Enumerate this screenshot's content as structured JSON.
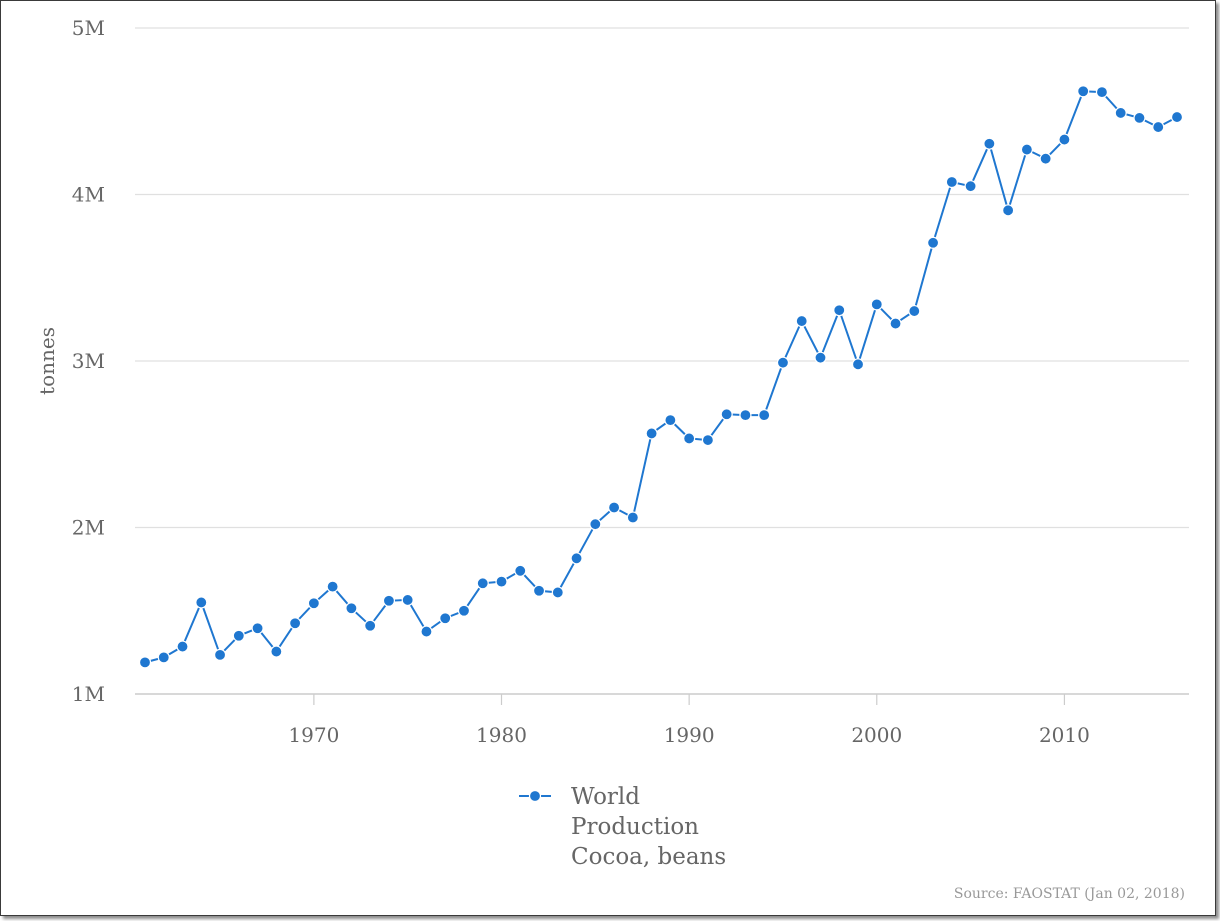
{
  "chart_data": {
    "type": "line",
    "title": "",
    "xlabel": "",
    "ylabel": "tonnes",
    "x": [
      1961,
      1962,
      1963,
      1964,
      1965,
      1966,
      1967,
      1968,
      1969,
      1970,
      1971,
      1972,
      1973,
      1974,
      1975,
      1976,
      1977,
      1978,
      1979,
      1980,
      1981,
      1982,
      1983,
      1984,
      1985,
      1986,
      1987,
      1988,
      1989,
      1990,
      1991,
      1992,
      1993,
      1994,
      1995,
      1996,
      1997,
      1998,
      1999,
      2000,
      2001,
      2002,
      2003,
      2004,
      2005,
      2006,
      2007,
      2008,
      2009,
      2010,
      2011,
      2012,
      2013,
      2014,
      2015,
      2016
    ],
    "series": [
      {
        "name": "World Production Cocoa, beans",
        "legend_lines": [
          "World",
          "Production",
          "Cocoa, beans"
        ],
        "color": "#1f77d0",
        "values": [
          1190000,
          1220000,
          1285000,
          1550000,
          1235000,
          1350000,
          1395000,
          1255000,
          1425000,
          1545000,
          1645000,
          1515000,
          1410000,
          1560000,
          1565000,
          1375000,
          1455000,
          1500000,
          1665000,
          1675000,
          1740000,
          1620000,
          1610000,
          1815000,
          2020000,
          2120000,
          2060000,
          2565000,
          2645000,
          2535000,
          2525000,
          2680000,
          2675000,
          2675000,
          2990000,
          3240000,
          3020000,
          3305000,
          2980000,
          3340000,
          3225000,
          3300000,
          3710000,
          4075000,
          4050000,
          4305000,
          3905000,
          4270000,
          4215000,
          4330000,
          4620000,
          4615000,
          4490000,
          4460000,
          4405000,
          4465000
        ]
      }
    ],
    "xlim": [
      1961,
      2016
    ],
    "ylim": [
      1000000,
      5000000
    ],
    "x_ticks": [
      1970,
      1980,
      1990,
      2000,
      2010
    ],
    "x_tick_labels": [
      "1970",
      "1980",
      "1990",
      "2000",
      "2010"
    ],
    "y_ticks": [
      1000000,
      2000000,
      3000000,
      4000000,
      5000000
    ],
    "y_tick_labels": [
      "1M",
      "2M",
      "3M",
      "4M",
      "5M"
    ],
    "grid": true,
    "legend_position": "bottom-center",
    "source_note": "Source: FAOSTAT (Jan 02, 2018)"
  }
}
